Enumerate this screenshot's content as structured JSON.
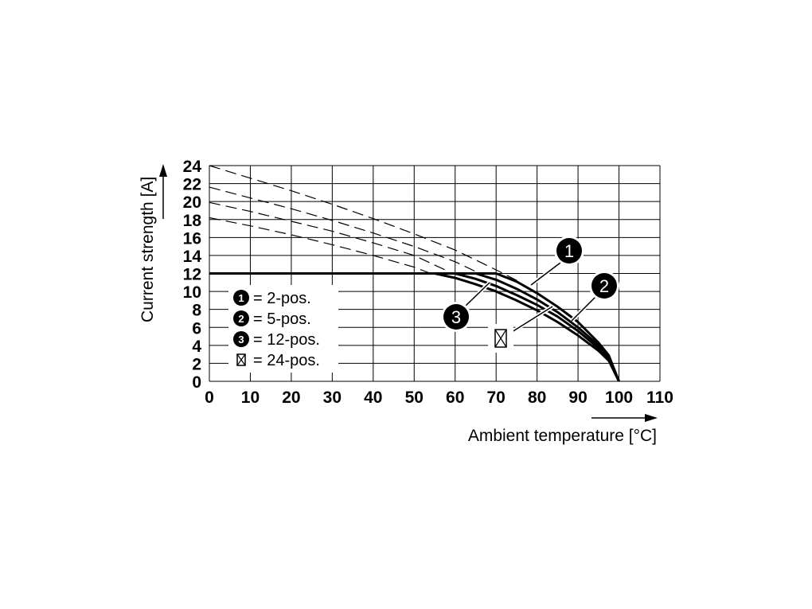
{
  "chart_data": {
    "type": "line",
    "title": "",
    "xlabel": "Ambient temperature [°C]",
    "ylabel": "Current strength [A]",
    "xlim": [
      0,
      110
    ],
    "ylim": [
      0,
      24
    ],
    "xticks": [
      0,
      10,
      20,
      30,
      40,
      50,
      60,
      70,
      80,
      90,
      100,
      110
    ],
    "yticks": [
      0,
      2,
      4,
      6,
      8,
      10,
      12,
      14,
      16,
      18,
      20,
      22,
      24
    ],
    "grid": true,
    "legend_position": "lower-left",
    "series": [
      {
        "name": "2-pos.",
        "marker": "1",
        "solid": [
          [
            70,
            12
          ],
          [
            75,
            11.1
          ],
          [
            80,
            9.8
          ],
          [
            85,
            8.3
          ],
          [
            90,
            6.6
          ],
          [
            95,
            4.3
          ],
          [
            97.5,
            2.9
          ],
          [
            100,
            0
          ]
        ],
        "dashed": [
          [
            0,
            24
          ],
          [
            10,
            22.6
          ],
          [
            20,
            21.2
          ],
          [
            30,
            19.7
          ],
          [
            40,
            18.1
          ],
          [
            50,
            16.4
          ],
          [
            60,
            14.6
          ],
          [
            70,
            12.4
          ],
          [
            76,
            11
          ]
        ]
      },
      {
        "name": "5-pos.",
        "marker": "2",
        "solid": [
          [
            65,
            12
          ],
          [
            70,
            11.3
          ],
          [
            75,
            10.3
          ],
          [
            80,
            9.1
          ],
          [
            85,
            7.7
          ],
          [
            90,
            6.0
          ],
          [
            95,
            4.0
          ],
          [
            97.5,
            2.7
          ],
          [
            100,
            0
          ]
        ],
        "dashed": [
          [
            0,
            21.6
          ],
          [
            10,
            20.4
          ],
          [
            20,
            19.2
          ],
          [
            30,
            17.9
          ],
          [
            40,
            16.5
          ],
          [
            50,
            15.0
          ],
          [
            60,
            13.3
          ],
          [
            66,
            12
          ]
        ]
      },
      {
        "name": "12-pos.",
        "marker": "3",
        "solid": [
          [
            60,
            12
          ],
          [
            65,
            11.4
          ],
          [
            70,
            10.6
          ],
          [
            75,
            9.6
          ],
          [
            80,
            8.5
          ],
          [
            85,
            7.2
          ],
          [
            90,
            5.6
          ],
          [
            95,
            3.7
          ],
          [
            97.5,
            2.5
          ],
          [
            100,
            0
          ]
        ],
        "dashed": [
          [
            0,
            19.9
          ],
          [
            10,
            18.9
          ],
          [
            20,
            17.8
          ],
          [
            30,
            16.7
          ],
          [
            40,
            15.4
          ],
          [
            50,
            14.0
          ],
          [
            58,
            12.3
          ]
        ]
      },
      {
        "name": "24-pos.",
        "marker": "box",
        "solid": [
          [
            55,
            12
          ],
          [
            60,
            11.5
          ],
          [
            65,
            10.8
          ],
          [
            70,
            10.0
          ],
          [
            75,
            9.0
          ],
          [
            80,
            7.9
          ],
          [
            85,
            6.6
          ],
          [
            90,
            5.1
          ],
          [
            95,
            3.4
          ],
          [
            97.5,
            2.3
          ],
          [
            100,
            0
          ]
        ],
        "dashed": [
          [
            0,
            18.2
          ],
          [
            10,
            17.3
          ],
          [
            20,
            16.3
          ],
          [
            30,
            15.2
          ],
          [
            40,
            14.0
          ],
          [
            50,
            12.7
          ],
          [
            54,
            12
          ]
        ]
      }
    ],
    "constant_line": {
      "y": 12,
      "x_from": 0,
      "x_to": 70
    },
    "legend": [
      {
        "marker": "1",
        "label": "= 2-pos."
      },
      {
        "marker": "2",
        "label": "= 5-pos."
      },
      {
        "marker": "3",
        "label": "= 12-pos."
      },
      {
        "marker": "box",
        "label": "= 24-pos."
      }
    ],
    "callouts": [
      {
        "marker": "1",
        "series": "2-pos."
      },
      {
        "marker": "2",
        "series": "5-pos."
      },
      {
        "marker": "3",
        "series": "12-pos."
      },
      {
        "marker": "box",
        "series": "24-pos."
      }
    ]
  }
}
